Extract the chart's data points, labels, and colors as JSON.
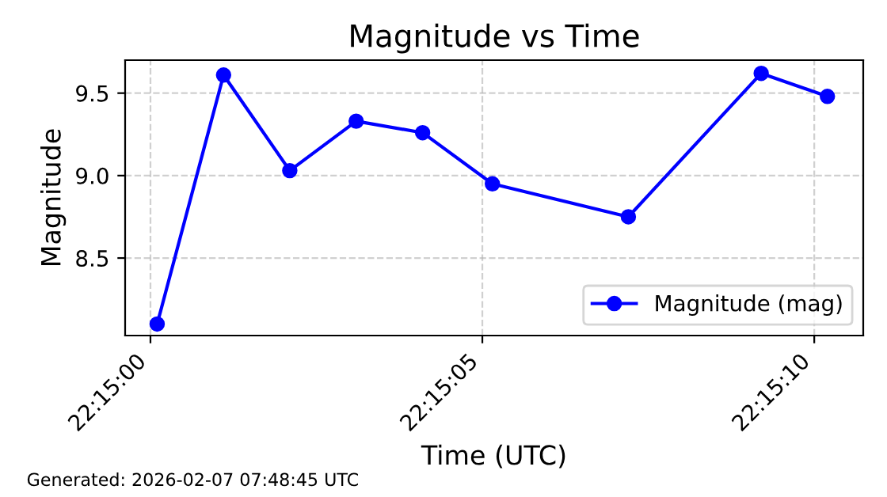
{
  "chart_data": {
    "type": "line",
    "title": "Magnitude vs Time",
    "xlabel": "Time (UTC)",
    "ylabel": "Magnitude",
    "x": [
      22.250028,
      22.250306,
      22.250583,
      22.250861,
      22.251139,
      22.251431,
      22.252,
      22.252556,
      22.252833
    ],
    "series": [
      {
        "name": "Magnitude (mag)",
        "color": "#0000ff",
        "values": [
          8.1,
          9.61,
          9.03,
          9.33,
          9.26,
          8.95,
          8.75,
          9.62,
          9.48
        ]
      }
    ],
    "xlim": [
      22.249894,
      22.252983
    ],
    "xticks": [
      {
        "value": 22.25,
        "label": "22:15:00"
      },
      {
        "value": 22.251389,
        "label": "22:15:05"
      },
      {
        "value": 22.252778,
        "label": "22:15:10"
      }
    ],
    "ylim": [
      8.03,
      9.7
    ],
    "yticks": [
      {
        "value": 8.5,
        "label": "8.5"
      },
      {
        "value": 9.0,
        "label": "9.0"
      },
      {
        "value": 9.5,
        "label": "9.5"
      }
    ],
    "grid": true,
    "legend": "bottom right",
    "marker": "circle",
    "line_style": "solid",
    "annotations": [
      "Generated: 2026-02-07 07:48:45 UTC"
    ]
  }
}
